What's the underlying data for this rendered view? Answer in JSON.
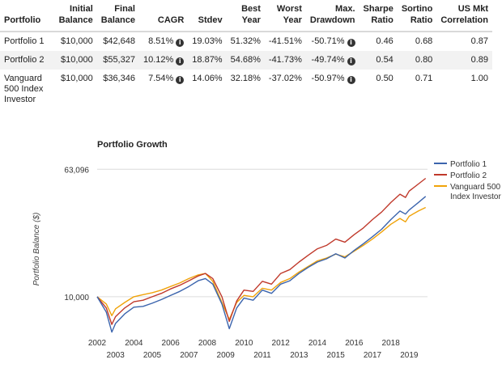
{
  "table": {
    "headers": [
      "Portfolio",
      "Initial Balance",
      "Final Balance",
      "CAGR",
      "Stdev",
      "Best Year",
      "Worst Year",
      "Max. Drawdown",
      "Sharpe Ratio",
      "Sortino Ratio",
      "US Mkt Correlation"
    ],
    "rows": [
      [
        "Portfolio 1",
        "$10,000",
        "$42,648",
        "8.51%",
        "19.03%",
        "51.32%",
        "-41.51%",
        "-50.71%",
        "0.46",
        "0.68",
        "0.87"
      ],
      [
        "Portfolio 2",
        "$10,000",
        "$55,327",
        "10.12%",
        "18.87%",
        "54.68%",
        "-41.73%",
        "-49.74%",
        "0.54",
        "0.80",
        "0.89"
      ],
      [
        "Vanguard 500 Index Investor",
        "$10,000",
        "$36,346",
        "7.54%",
        "14.06%",
        "32.18%",
        "-37.02%",
        "-50.97%",
        "0.50",
        "0.71",
        "1.00"
      ]
    ],
    "info_icon": "info-circle-icon",
    "info_columns": [
      3,
      7
    ]
  },
  "chart_data": {
    "type": "line",
    "title": "Portfolio Growth",
    "ylabel": "Portfolio Balance ($)",
    "yscale": "log",
    "ytick_labels": [
      "63,096",
      "10,000"
    ],
    "ytick_values": [
      63096,
      10000
    ],
    "x_ticks_top": [
      "2002",
      "2004",
      "2006",
      "2008",
      "2010",
      "2012",
      "2014",
      "2016",
      "2018"
    ],
    "x_ticks_bottom": [
      "2003",
      "2005",
      "2007",
      "2009",
      "2011",
      "2013",
      "2015",
      "2017",
      "2019"
    ],
    "legend_position": "right",
    "series": [
      {
        "name": "Portfolio 1",
        "color": "#3b64ad",
        "x": [
          2002.0,
          2002.5,
          2002.8,
          2003.0,
          2003.5,
          2004.0,
          2004.5,
          2005.0,
          2005.5,
          2006.0,
          2006.5,
          2007.0,
          2007.5,
          2007.9,
          2008.3,
          2008.8,
          2009.2,
          2009.6,
          2010.0,
          2010.5,
          2011.0,
          2011.5,
          2012.0,
          2012.5,
          2013.0,
          2013.5,
          2014.0,
          2014.5,
          2015.0,
          2015.5,
          2016.0,
          2016.5,
          2017.0,
          2017.5,
          2018.0,
          2018.5,
          2018.8,
          2019.0,
          2019.5,
          2019.9
        ],
        "y": [
          10000,
          8000,
          6000,
          6800,
          7800,
          8600,
          8700,
          9100,
          9600,
          10200,
          10800,
          11600,
          12600,
          13000,
          12000,
          9000,
          6300,
          8500,
          9800,
          9500,
          11000,
          10500,
          12000,
          12600,
          14000,
          15300,
          16500,
          17300,
          18600,
          17500,
          19500,
          21500,
          23800,
          26500,
          30500,
          34500,
          33000,
          35000,
          39000,
          42648
        ]
      },
      {
        "name": "Portfolio 2",
        "color": "#c0392b",
        "x": [
          2002.0,
          2002.5,
          2002.8,
          2003.0,
          2003.5,
          2004.0,
          2004.5,
          2005.0,
          2005.5,
          2006.0,
          2006.5,
          2007.0,
          2007.5,
          2007.9,
          2008.3,
          2008.8,
          2009.2,
          2009.6,
          2010.0,
          2010.5,
          2011.0,
          2011.5,
          2012.0,
          2012.5,
          2013.0,
          2013.5,
          2014.0,
          2014.5,
          2015.0,
          2015.5,
          2016.0,
          2016.5,
          2017.0,
          2017.5,
          2018.0,
          2018.5,
          2018.8,
          2019.0,
          2019.5,
          2019.9
        ],
        "y": [
          10000,
          8500,
          6700,
          7500,
          8500,
          9300,
          9500,
          10000,
          10500,
          11200,
          11800,
          12600,
          13500,
          14000,
          13000,
          10000,
          7000,
          9400,
          11000,
          10800,
          12500,
          12000,
          14000,
          14800,
          16500,
          18200,
          20000,
          21000,
          23000,
          22000,
          24500,
          27000,
          30500,
          34000,
          39000,
          44000,
          42000,
          46000,
          51000,
          55327
        ]
      },
      {
        "name": "Vanguard 500 Index Investor",
        "color": "#f0a30a",
        "x": [
          2002.0,
          2002.5,
          2002.8,
          2003.0,
          2003.5,
          2004.0,
          2004.5,
          2005.0,
          2005.5,
          2006.0,
          2006.5,
          2007.0,
          2007.5,
          2007.9,
          2008.3,
          2008.8,
          2009.2,
          2009.6,
          2010.0,
          2010.5,
          2011.0,
          2011.5,
          2012.0,
          2012.5,
          2013.0,
          2013.5,
          2014.0,
          2014.5,
          2015.0,
          2015.5,
          2016.0,
          2016.5,
          2017.0,
          2017.5,
          2018.0,
          2018.5,
          2018.8,
          2019.0,
          2019.5,
          2019.9
        ],
        "y": [
          10000,
          9000,
          7600,
          8400,
          9200,
          10000,
          10300,
          10600,
          11000,
          11600,
          12200,
          13000,
          13700,
          14000,
          12500,
          9200,
          7200,
          9200,
          10200,
          10000,
          11300,
          11000,
          12300,
          13000,
          14300,
          15500,
          16800,
          17500,
          18500,
          17800,
          19300,
          21000,
          23000,
          25500,
          28500,
          31000,
          29500,
          32000,
          34500,
          36346
        ]
      }
    ]
  }
}
